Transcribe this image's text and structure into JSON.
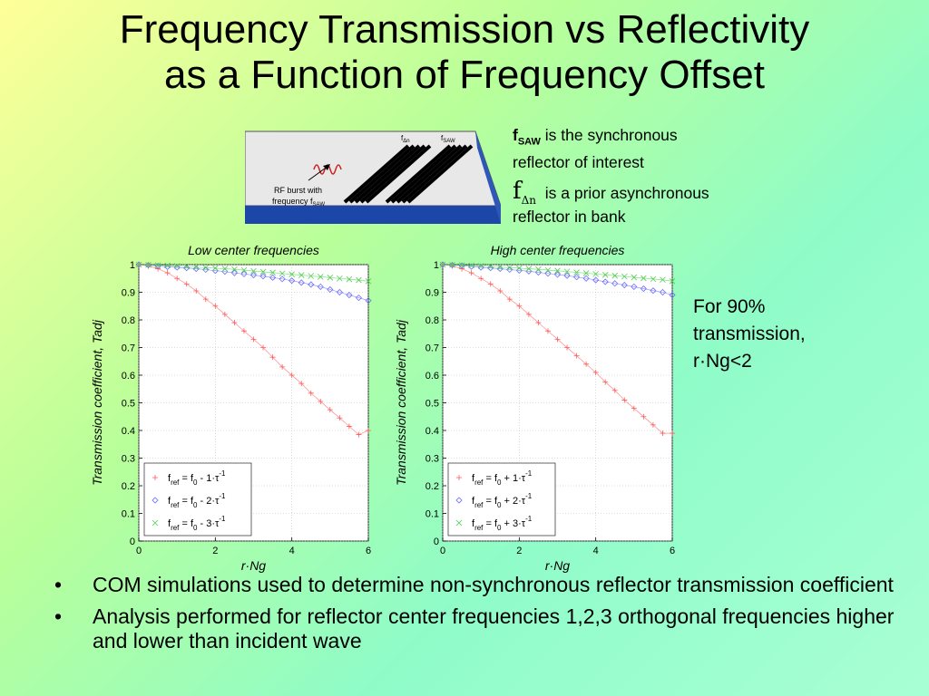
{
  "title_line1": "Frequency Transmission vs Reflectivity",
  "title_line2": "as a Function of Frequency Offset",
  "diagram": {
    "label_fdn": "f",
    "label_fdn_sub": "Δn",
    "label_fsaw": "f",
    "label_fsaw_sub": "SAW",
    "rf_line1": "RF burst with",
    "rf_line2": "frequency f",
    "rf_sub": "SAW"
  },
  "notes": {
    "fsaw_symbol": "f",
    "fsaw_sub": "SAW",
    "fsaw_text": " is the synchronous",
    "fsaw_text2": "reflector of interest",
    "fdn_symbol": "f",
    "fdn_sub": "Δn",
    "fdn_text": "is a prior asynchronous",
    "fdn_text2": "reflector in bank"
  },
  "side_note": {
    "line1": "For 90%",
    "line2": "transmission,",
    "line3": "r·Ng<2"
  },
  "bullets": [
    "COM simulations used to determine non-synchronous reflector transmission coefficient",
    "Analysis performed for reflector center frequencies 1,2,3 orthogonal frequencies higher and lower than incident wave"
  ],
  "chart_data": [
    {
      "type": "scatter",
      "title": "Low center frequencies",
      "xlabel": "r·Ng",
      "ylabel": "Transmission coefficient, Tadj",
      "xlim": [
        0,
        6
      ],
      "ylim": [
        0,
        1
      ],
      "xticks": [
        "0",
        "2",
        "4",
        "6"
      ],
      "yticks": [
        "0",
        "0.1",
        "0.2",
        "0.3",
        "0.4",
        "0.5",
        "0.6",
        "0.7",
        "0.8",
        "0.9",
        "1"
      ],
      "grid": true,
      "legend_position": "bottom-left",
      "x": [
        0,
        0.25,
        0.5,
        0.75,
        1,
        1.25,
        1.5,
        1.75,
        2,
        2.25,
        2.5,
        2.75,
        3,
        3.25,
        3.5,
        3.75,
        4,
        4.25,
        4.5,
        4.75,
        5,
        5.25,
        5.5,
        5.75,
        6
      ],
      "series": [
        {
          "name": "fref = f0 - 1·τ⁻¹",
          "label_main": "f",
          "sub1": "ref",
          "mid": " = f",
          "sub2": "0",
          "op": " - 1·τ",
          "sup": "-1",
          "marker": "plus",
          "color": "#ff5a5a",
          "values": [
            1.0,
            0.995,
            0.985,
            0.97,
            0.95,
            0.93,
            0.905,
            0.875,
            0.85,
            0.82,
            0.79,
            0.76,
            0.73,
            0.7,
            0.665,
            0.63,
            0.6,
            0.57,
            0.535,
            0.505,
            0.475,
            0.445,
            0.415,
            0.385,
            0.4
          ]
        },
        {
          "name": "fref = f0 - 2·τ⁻¹",
          "label_main": "f",
          "sub1": "ref",
          "mid": " = f",
          "sub2": "0",
          "op": " - 2·τ",
          "sup": "-1",
          "marker": "diamond",
          "color": "#6b6bff",
          "values": [
            1.0,
            0.998,
            0.995,
            0.992,
            0.99,
            0.988,
            0.985,
            0.982,
            0.978,
            0.975,
            0.97,
            0.966,
            0.962,
            0.958,
            0.953,
            0.948,
            0.942,
            0.935,
            0.928,
            0.92,
            0.91,
            0.9,
            0.89,
            0.88,
            0.87
          ]
        },
        {
          "name": "fref = f0 - 3·τ⁻¹",
          "label_main": "f",
          "sub1": "ref",
          "mid": " = f",
          "sub2": "0",
          "op": " - 3·τ",
          "sup": "-1",
          "marker": "x",
          "color": "#4fcf4f",
          "values": [
            1.0,
            0.999,
            0.998,
            0.997,
            0.995,
            0.993,
            0.991,
            0.989,
            0.987,
            0.985,
            0.983,
            0.98,
            0.977,
            0.974,
            0.971,
            0.968,
            0.965,
            0.962,
            0.959,
            0.956,
            0.953,
            0.95,
            0.947,
            0.944,
            0.94
          ]
        }
      ]
    },
    {
      "type": "scatter",
      "title": "High center frequencies",
      "xlabel": "r·Ng",
      "ylabel": "Transmission coefficient, Tadj",
      "xlim": [
        0,
        6
      ],
      "ylim": [
        0,
        1
      ],
      "xticks": [
        "0",
        "2",
        "4",
        "6"
      ],
      "yticks": [
        "0",
        "0.1",
        "0.2",
        "0.3",
        "0.4",
        "0.5",
        "0.6",
        "0.7",
        "0.8",
        "0.9",
        "1"
      ],
      "grid": true,
      "legend_position": "bottom-left",
      "x": [
        0,
        0.25,
        0.5,
        0.75,
        1,
        1.25,
        1.5,
        1.75,
        2,
        2.25,
        2.5,
        2.75,
        3,
        3.25,
        3.5,
        3.75,
        4,
        4.25,
        4.5,
        4.75,
        5,
        5.25,
        5.5,
        5.75,
        6
      ],
      "series": [
        {
          "name": "fref = f0 + 1·τ⁻¹",
          "label_main": "f",
          "sub1": "ref",
          "mid": " = f",
          "sub2": "0",
          "op": " + 1·τ",
          "sup": "-1",
          "marker": "plus",
          "color": "#ff5a5a",
          "values": [
            1.0,
            0.995,
            0.985,
            0.97,
            0.95,
            0.93,
            0.905,
            0.875,
            0.85,
            0.82,
            0.79,
            0.76,
            0.73,
            0.7,
            0.67,
            0.64,
            0.61,
            0.575,
            0.545,
            0.51,
            0.48,
            0.45,
            0.42,
            0.39,
            0.39
          ]
        },
        {
          "name": "fref = f0 + 2·τ⁻¹",
          "label_main": "f",
          "sub1": "ref",
          "mid": " = f",
          "sub2": "0",
          "op": " + 2·τ",
          "sup": "-1",
          "marker": "diamond",
          "color": "#6b6bff",
          "values": [
            1.0,
            0.998,
            0.996,
            0.993,
            0.99,
            0.988,
            0.985,
            0.982,
            0.979,
            0.976,
            0.972,
            0.968,
            0.964,
            0.96,
            0.955,
            0.95,
            0.944,
            0.938,
            0.932,
            0.926,
            0.92,
            0.913,
            0.906,
            0.9,
            0.89
          ]
        },
        {
          "name": "fref = f0 + 3·τ⁻¹",
          "label_main": "f",
          "sub1": "ref",
          "mid": " = f",
          "sub2": "0",
          "op": " + 3·τ",
          "sup": "-1",
          "marker": "x",
          "color": "#4fcf4f",
          "values": [
            1.0,
            0.999,
            0.998,
            0.997,
            0.995,
            0.993,
            0.991,
            0.989,
            0.987,
            0.985,
            0.983,
            0.98,
            0.978,
            0.975,
            0.972,
            0.969,
            0.966,
            0.963,
            0.96,
            0.957,
            0.954,
            0.951,
            0.948,
            0.945,
            0.94
          ]
        }
      ]
    }
  ]
}
